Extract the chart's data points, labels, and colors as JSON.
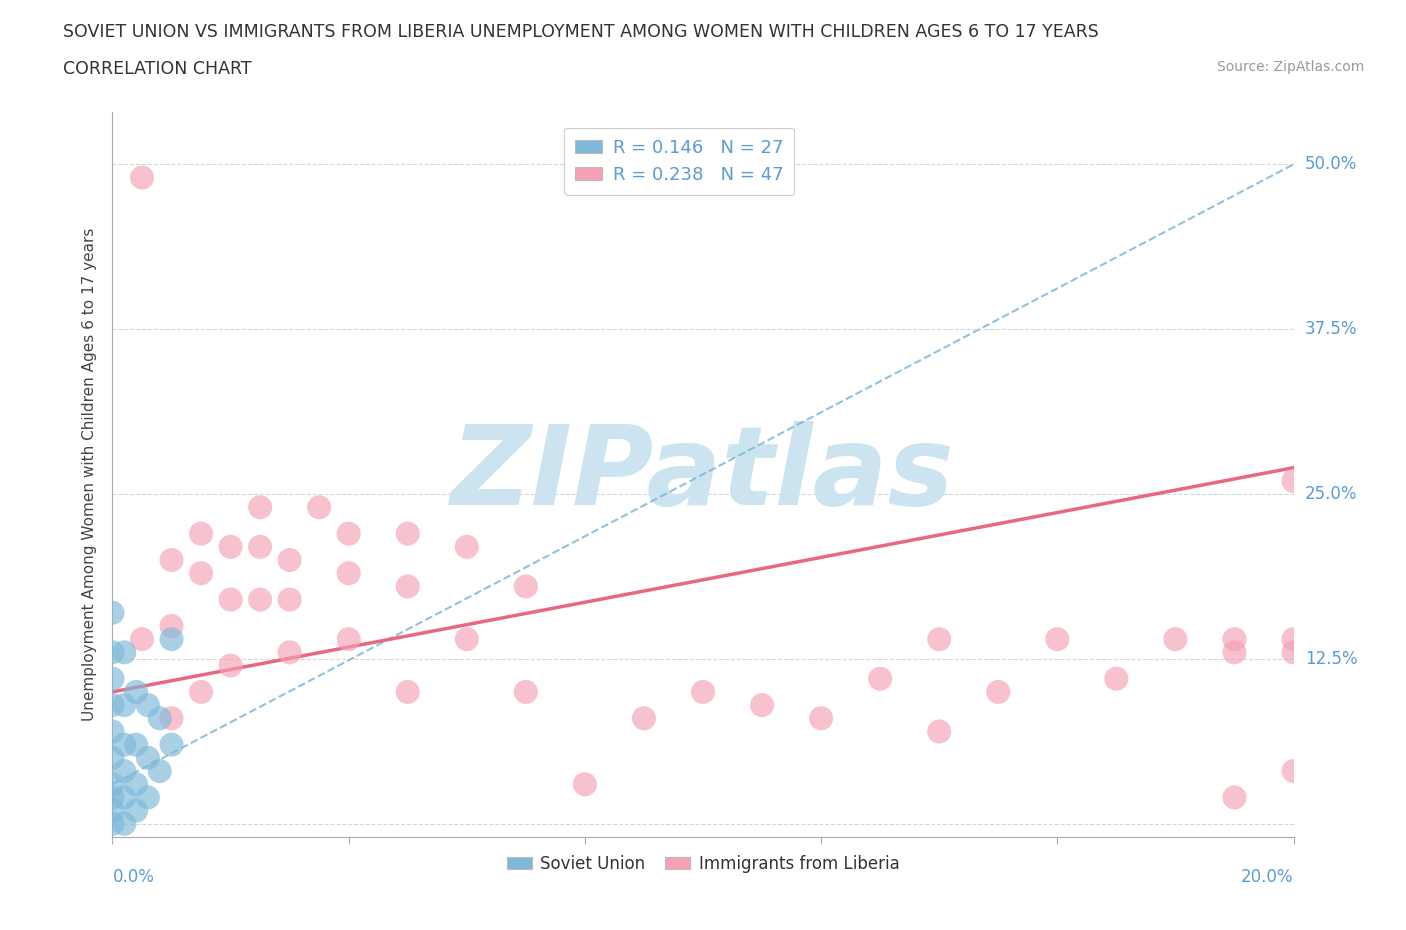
{
  "title_line1": "SOVIET UNION VS IMMIGRANTS FROM LIBERIA UNEMPLOYMENT AMONG WOMEN WITH CHILDREN AGES 6 TO 17 YEARS",
  "title_line2": "CORRELATION CHART",
  "source_text": "Source: ZipAtlas.com",
  "ylabel": "Unemployment Among Women with Children Ages 6 to 17 years",
  "xlim": [
    0.0,
    0.2
  ],
  "ylim": [
    -0.01,
    0.54
  ],
  "ytick_positions": [
    0.0,
    0.125,
    0.25,
    0.375,
    0.5
  ],
  "yticklabels": [
    "",
    "12.5%",
    "25.0%",
    "37.5%",
    "50.0%"
  ],
  "soviet_color": "#7db8d8",
  "liberia_color": "#f4a0b5",
  "soviet_R": 0.146,
  "soviet_N": 27,
  "liberia_R": 0.238,
  "liberia_N": 47,
  "background_color": "#ffffff",
  "grid_color": "#cccccc",
  "watermark_color": "#cce4f0",
  "soviet_scatter_x": [
    0.0,
    0.0,
    0.0,
    0.0,
    0.0,
    0.0,
    0.0,
    0.0,
    0.0,
    0.0,
    0.002,
    0.002,
    0.002,
    0.002,
    0.002,
    0.002,
    0.004,
    0.004,
    0.004,
    0.004,
    0.006,
    0.006,
    0.006,
    0.008,
    0.008,
    0.01,
    0.01
  ],
  "soviet_scatter_y": [
    0.0,
    0.01,
    0.02,
    0.03,
    0.05,
    0.07,
    0.09,
    0.11,
    0.13,
    0.16,
    0.0,
    0.02,
    0.04,
    0.06,
    0.09,
    0.13,
    0.01,
    0.03,
    0.06,
    0.1,
    0.02,
    0.05,
    0.09,
    0.04,
    0.08,
    0.06,
    0.14
  ],
  "liberia_scatter_x": [
    0.005,
    0.005,
    0.01,
    0.01,
    0.01,
    0.015,
    0.015,
    0.015,
    0.02,
    0.02,
    0.02,
    0.025,
    0.025,
    0.025,
    0.03,
    0.03,
    0.03,
    0.035,
    0.04,
    0.04,
    0.04,
    0.05,
    0.05,
    0.05,
    0.06,
    0.06,
    0.07,
    0.07,
    0.08,
    0.09,
    0.1,
    0.11,
    0.12,
    0.13,
    0.14,
    0.14,
    0.15,
    0.16,
    0.17,
    0.18,
    0.19,
    0.19,
    0.19,
    0.2,
    0.2,
    0.2,
    0.2
  ],
  "liberia_scatter_y": [
    0.49,
    0.14,
    0.2,
    0.15,
    0.08,
    0.19,
    0.22,
    0.1,
    0.17,
    0.21,
    0.12,
    0.21,
    0.24,
    0.17,
    0.2,
    0.17,
    0.13,
    0.24,
    0.19,
    0.22,
    0.14,
    0.18,
    0.22,
    0.1,
    0.21,
    0.14,
    0.18,
    0.1,
    0.03,
    0.08,
    0.1,
    0.09,
    0.08,
    0.11,
    0.07,
    0.14,
    0.1,
    0.14,
    0.11,
    0.14,
    0.14,
    0.02,
    0.13,
    0.13,
    0.26,
    0.04,
    0.14
  ],
  "soviet_trend_x": [
    0.0,
    0.2
  ],
  "soviet_trend_y": [
    0.03,
    0.5
  ],
  "liberia_trend_x": [
    0.0,
    0.2
  ],
  "liberia_trend_y": [
    0.1,
    0.27
  ]
}
